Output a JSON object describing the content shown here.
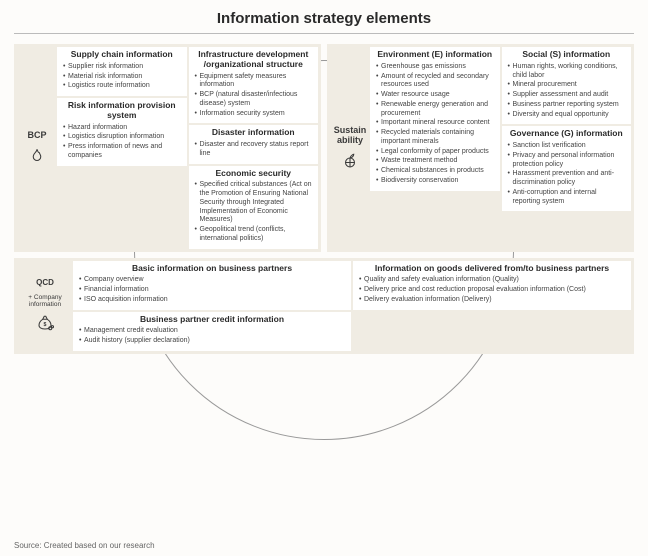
{
  "title": "Information strategy elements",
  "source": "Source: Created based on our research",
  "colors": {
    "panel_bg": "#f0ece3",
    "card_bg": "#ffffff",
    "circle_border": "#999999",
    "text": "#2a2a2a"
  },
  "bcp": {
    "label": "BCP",
    "col1": [
      {
        "heading": "Supply chain information",
        "items": [
          "Supplier risk information",
          "Material risk information",
          "Logistics route information"
        ]
      },
      {
        "heading": "Risk information provision system",
        "items": [
          "Hazard information",
          "Logistics disruption information",
          "Press information of news and companies"
        ]
      }
    ],
    "col2": [
      {
        "heading": "Infrastructure development /organizational structure",
        "items": [
          "Equipment safety measures information",
          "BCP (natural disaster/infectious disease) system",
          "Information security system"
        ]
      },
      {
        "heading": "Disaster information",
        "items": [
          "Disaster and recovery status report line"
        ]
      },
      {
        "heading": "Economic security",
        "items": [
          "Specified critical substances (Act on the Promotion of Ensuring National Security through Integrated Implementation of Economic Measures)",
          "Geopolitical trend (conflicts, international politics)"
        ]
      }
    ]
  },
  "sustain": {
    "label": "Sustain ability",
    "col1": [
      {
        "heading": "Environment (E) information",
        "items": [
          "Greenhouse gas emissions",
          "Amount of recycled and secondary resources used",
          "Water resource usage",
          "Renewable energy generation and procurement",
          "Important mineral resource content",
          "Recycled materials containing important minerals",
          "Legal conformity of paper products",
          "Waste treatment method",
          "Chemical substances in products",
          "Biodiversity conservation"
        ]
      }
    ],
    "col2": [
      {
        "heading": "Social (S) information",
        "items": [
          "Human rights, working conditions, child labor",
          "Mineral procurement",
          "Supplier assessment and audit",
          "Business partner reporting system",
          "Diversity and equal opportunity"
        ]
      },
      {
        "heading": "Governance (G) information",
        "items": [
          "Sanction list verification",
          "Privacy and personal information protection policy",
          "Harassment prevention and anti-discrimination policy",
          "Anti-corruption and internal reporting system"
        ]
      }
    ]
  },
  "qcd": {
    "label_line1": "QCD",
    "label_line2": "+ Company information",
    "col1": [
      {
        "heading": "Basic information on business partners",
        "items": [
          "Company overview",
          "Financial information",
          "ISO acquisition information"
        ]
      },
      {
        "heading": "Business partner credit information",
        "items": [
          "Management credit evaluation",
          "Audit history (supplier declaration)"
        ]
      }
    ],
    "col2": [
      {
        "heading": "Information on goods delivered from/to business partners",
        "items": [
          "Quality and safety evaluation information (Quality)",
          "Delivery price and cost reduction proposal evaluation information (Cost)",
          "Delivery evaluation information (Delivery)"
        ]
      }
    ]
  }
}
